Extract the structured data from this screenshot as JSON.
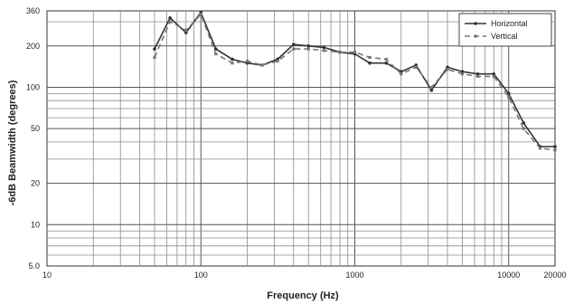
{
  "chart_data": {
    "type": "line",
    "title": "",
    "xlabel": "Frequency (Hz)",
    "ylabel": "-6dB Beamwidth (degrees)",
    "x_scale": "log",
    "y_scale": "log",
    "xlim": [
      10,
      20000
    ],
    "ylim": [
      5,
      360
    ],
    "x_ticks": [
      10,
      100,
      1000,
      10000,
      20000
    ],
    "x_tick_labels": [
      "10",
      "100",
      "1000",
      "10000",
      "20000"
    ],
    "y_ticks": [
      5,
      10,
      20,
      50,
      100,
      200,
      360
    ],
    "y_tick_labels": [
      "5.0",
      "10",
      "20",
      "50",
      "100",
      "200",
      "360"
    ],
    "grid": true,
    "legend_position": "top-right",
    "series": [
      {
        "name": "Horizontal",
        "color": "#333333",
        "dash": "solid",
        "x": [
          50,
          63,
          80,
          100,
          125,
          160,
          200,
          250,
          315,
          400,
          500,
          630,
          800,
          1000,
          1250,
          1600,
          2000,
          2500,
          3150,
          4000,
          5000,
          6300,
          8000,
          10000,
          12500,
          16000,
          20000
        ],
        "y": [
          190,
          320,
          250,
          350,
          190,
          160,
          150,
          145,
          160,
          205,
          200,
          195,
          180,
          175,
          150,
          150,
          130,
          145,
          95,
          140,
          130,
          125,
          125,
          90,
          55,
          37,
          37
        ]
      },
      {
        "name": "Vertical",
        "color": "#777777",
        "dash": "6,4",
        "x": [
          50,
          63,
          80,
          100,
          125,
          160,
          200,
          250,
          315,
          400,
          500,
          630,
          800,
          1000,
          1250,
          1600,
          2000,
          2500,
          3150,
          4000,
          5000,
          6300,
          8000,
          10000,
          12500,
          16000,
          20000
        ],
        "y": [
          165,
          300,
          260,
          340,
          175,
          150,
          155,
          145,
          155,
          190,
          190,
          185,
          180,
          180,
          165,
          160,
          125,
          140,
          100,
          135,
          125,
          120,
          120,
          85,
          50,
          36,
          35
        ]
      }
    ]
  }
}
